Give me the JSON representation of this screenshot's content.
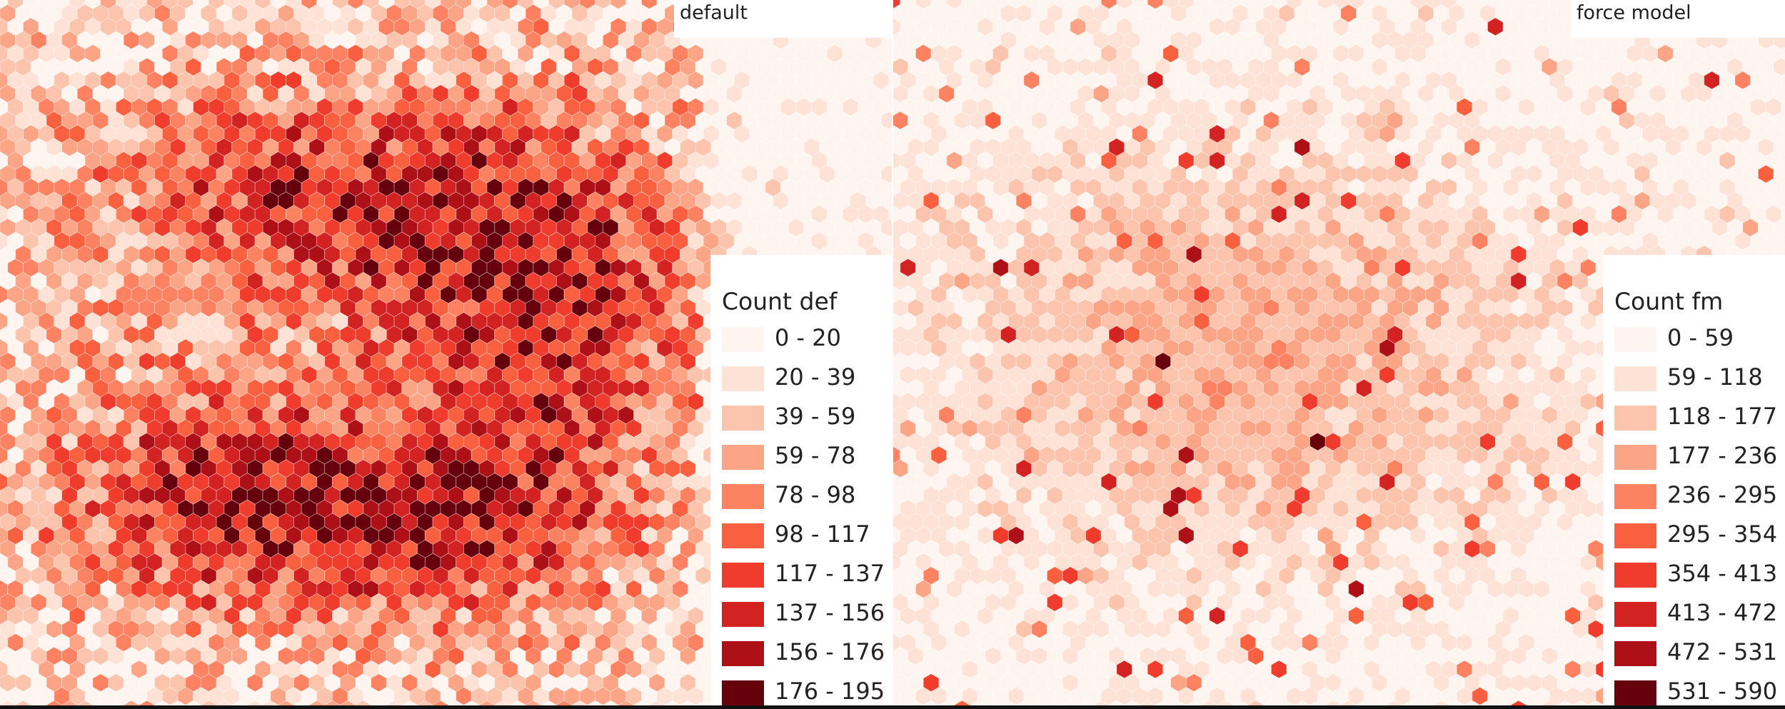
{
  "panels": [
    {
      "label": "default",
      "legend": {
        "title": "Count def",
        "items": [
          {
            "label": "0 - 20",
            "color": "#fff5f0"
          },
          {
            "label": "20 - 39",
            "color": "#fee2d5"
          },
          {
            "label": "39 - 59",
            "color": "#fcc4ad"
          },
          {
            "label": "59 - 78",
            "color": "#fca486"
          },
          {
            "label": "78 - 98",
            "color": "#fc8262"
          },
          {
            "label": "98 - 117",
            "color": "#f9603f"
          },
          {
            "label": "117 - 137",
            "color": "#ef3c2c"
          },
          {
            "label": "137 - 156",
            "color": "#d22221"
          },
          {
            "label": "156 - 176",
            "color": "#ae1018"
          },
          {
            "label": "176 - 195",
            "color": "#67000d"
          }
        ]
      }
    },
    {
      "label": "force model",
      "legend": {
        "title": "Count fm",
        "items": [
          {
            "label": "0 - 59",
            "color": "#fff5f0"
          },
          {
            "label": "59 - 118",
            "color": "#fee2d5"
          },
          {
            "label": "118 - 177",
            "color": "#fcc4ad"
          },
          {
            "label": "177 - 236",
            "color": "#fca486"
          },
          {
            "label": "236 - 295",
            "color": "#fc8262"
          },
          {
            "label": "295 - 354",
            "color": "#f9603f"
          },
          {
            "label": "354 - 413",
            "color": "#ef3c2c"
          },
          {
            "label": "413 - 472",
            "color": "#d22221"
          },
          {
            "label": "472 - 531",
            "color": "#ae1018"
          },
          {
            "label": "531 - 590",
            "color": "#67000d"
          }
        ]
      }
    }
  ]
}
